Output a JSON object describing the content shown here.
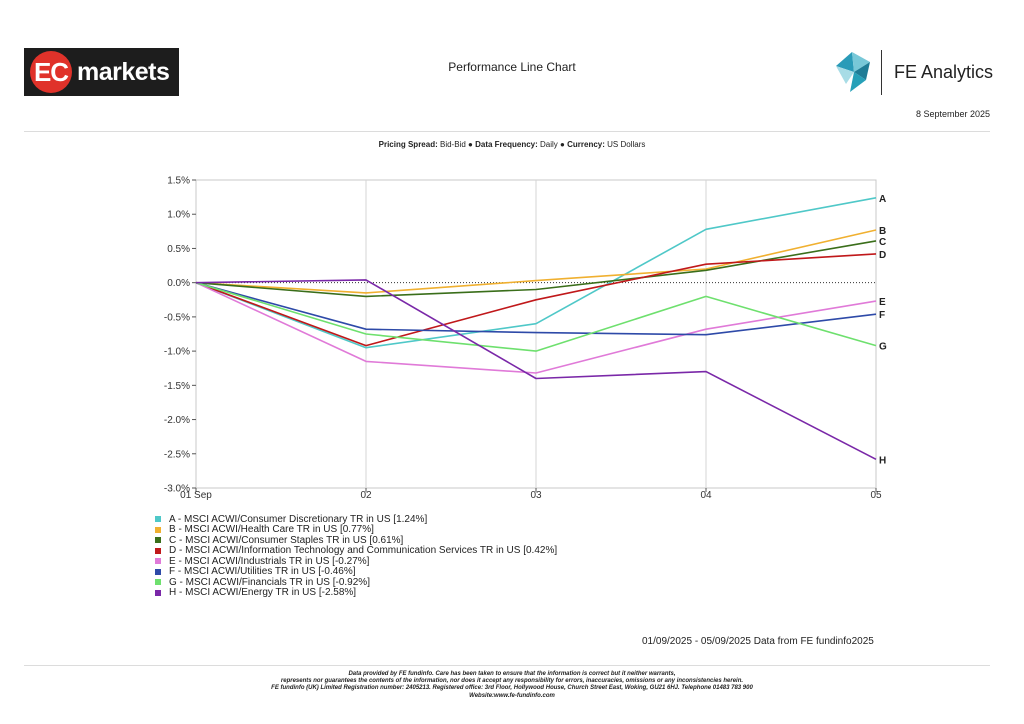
{
  "header": {
    "logo_left": {
      "part1": "EC",
      "part2": "markets"
    },
    "title": "Performance Line Chart",
    "logo_right": {
      "text": "FE Analytics"
    },
    "date": "8 September 2025"
  },
  "settings": {
    "pricing_label": "Pricing Spread:",
    "pricing_value": "Bid-Bid",
    "sep1": "●",
    "frequency_label": "Data Frequency:",
    "frequency_value": "Daily",
    "sep2": "●",
    "currency_label": "Currency:",
    "currency_value": "US Dollars"
  },
  "chart_data": {
    "type": "line",
    "x": [
      "01 Sep",
      "02",
      "03",
      "04",
      "05"
    ],
    "ylim": [
      -3.0,
      1.5
    ],
    "yticks": [
      "1.5%",
      "1.0%",
      "0.5%",
      "0.0%",
      "-0.5%",
      "-1.0%",
      "-1.5%",
      "-2.0%",
      "-2.5%",
      "-3.0%"
    ],
    "ytick_values": [
      1.5,
      1.0,
      0.5,
      0.0,
      -0.5,
      -1.0,
      -1.5,
      -2.0,
      -2.5,
      -3.0
    ],
    "grid": true,
    "series": [
      {
        "name": "A - MSCI ACWI/Consumer Discretionary TR in US [1.24%]",
        "label": "A",
        "color": "#4fc8c8",
        "values": [
          0.0,
          -0.95,
          -0.6,
          0.78,
          1.24
        ]
      },
      {
        "name": "B - MSCI ACWI/Health Care TR in US [0.77%]",
        "label": "B",
        "color": "#f0b030",
        "values": [
          0.0,
          -0.15,
          0.03,
          0.2,
          0.77
        ]
      },
      {
        "name": "C - MSCI ACWI/Consumer Staples TR in US [0.61%]",
        "label": "C",
        "color": "#3a6e1a",
        "values": [
          0.0,
          -0.2,
          -0.1,
          0.18,
          0.61
        ]
      },
      {
        "name": "D - MSCI ACWI/Information Technology and Communication Services TR in US [0.42%]",
        "label": "D",
        "color": "#c0181a",
        "values": [
          0.0,
          -0.92,
          -0.25,
          0.27,
          0.42
        ]
      },
      {
        "name": "E - MSCI ACWI/Industrials TR in US [-0.27%]",
        "label": "E",
        "color": "#e07ad8",
        "values": [
          0.0,
          -1.15,
          -1.32,
          -0.68,
          -0.27
        ]
      },
      {
        "name": "F - MSCI ACWI/Utilities TR in US [-0.46%]",
        "label": "F",
        "color": "#2e4aa8",
        "values": [
          0.0,
          -0.68,
          -0.73,
          -0.76,
          -0.46
        ]
      },
      {
        "name": "G - MSCI ACWI/Financials TR in US [-0.92%]",
        "label": "G",
        "color": "#6ee06e",
        "values": [
          0.0,
          -0.75,
          -1.0,
          -0.2,
          -0.92
        ]
      },
      {
        "name": "H - MSCI ACWI/Energy TR in US [-2.58%]",
        "label": "H",
        "color": "#7a28a8",
        "values": [
          0.0,
          0.04,
          -1.4,
          -1.3,
          -2.58
        ]
      }
    ]
  },
  "range_note": "01/09/2025 - 05/09/2025 Data from FE fundinfo2025",
  "footer": {
    "line1": "Data provided by FE fundinfo. Care has been taken to ensure that the information is correct but it neither warrants,",
    "line2": "represents nor guarantees the contents of the information, nor does it accept any responsibility for errors, inaccuracies, omissions or any inconsistencies herein.",
    "line3": "FE fundinfo (UK) Limited Registration number: 2405213. Registered office: 3rd Floor, Hollywood House, Church Street East, Woking, GU21 6HJ. Telephone 01483 783 900",
    "line4": "Website:www.fe-fundinfo.com"
  }
}
